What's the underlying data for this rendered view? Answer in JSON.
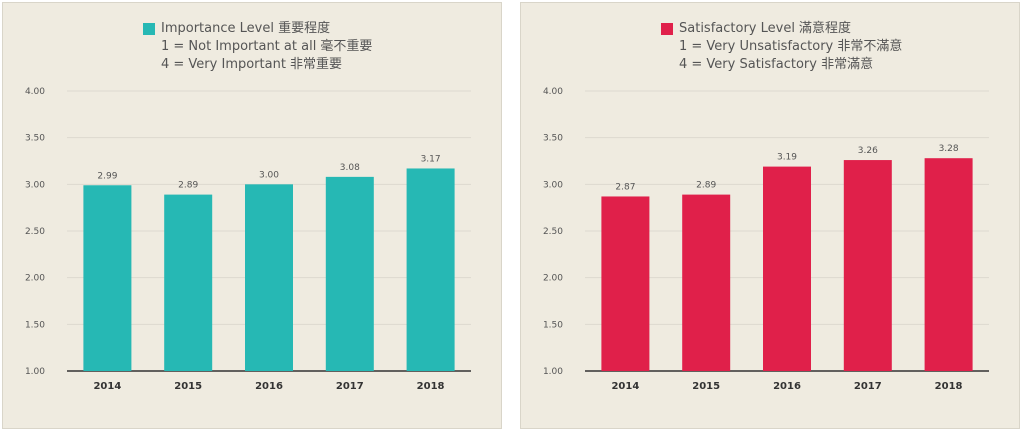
{
  "chart_data": [
    {
      "type": "bar",
      "legend": {
        "series_label": "Importance Level 重要程度",
        "scale_low": "1 = Not Important at all 毫不重要",
        "scale_high": "4 = Very Important 非常重要"
      },
      "color": "#26b8b4",
      "categories": [
        "2014",
        "2015",
        "2016",
        "2017",
        "2018"
      ],
      "values": [
        2.99,
        2.89,
        3.0,
        3.08,
        3.17
      ],
      "value_labels": [
        "2.99",
        "2.89",
        "3.00",
        "3.08",
        "3.17"
      ],
      "ylim": [
        1.0,
        4.0
      ],
      "yticks": [
        "1.00",
        "1.50",
        "2.00",
        "2.50",
        "3.00",
        "3.50",
        "4.00"
      ],
      "grid": true,
      "legend_position": "top"
    },
    {
      "type": "bar",
      "legend": {
        "series_label": "Satisfactory Level 滿意程度",
        "scale_low": "1 = Very Unsatisfactory 非常不滿意",
        "scale_high": "4 = Very Satisfactory 非常滿意"
      },
      "color": "#e0204a",
      "categories": [
        "2014",
        "2015",
        "2016",
        "2017",
        "2018"
      ],
      "values": [
        2.87,
        2.89,
        3.19,
        3.26,
        3.28
      ],
      "value_labels": [
        "2.87",
        "2.89",
        "3.19",
        "3.26",
        "3.28"
      ],
      "ylim": [
        1.0,
        4.0
      ],
      "yticks": [
        "1.00",
        "1.50",
        "2.00",
        "2.50",
        "3.00",
        "3.50",
        "4.00"
      ],
      "grid": true,
      "legend_position": "top"
    }
  ]
}
